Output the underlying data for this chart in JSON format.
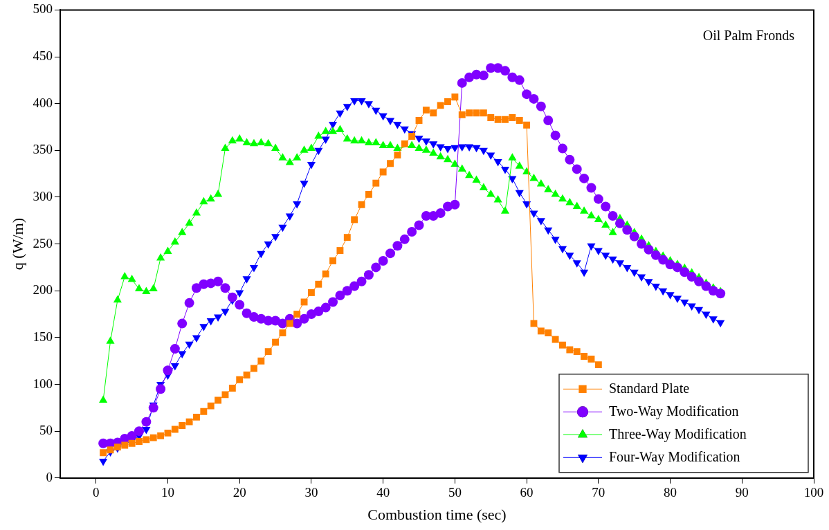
{
  "chart_data": {
    "type": "line",
    "xlabel": "Combustion time (sec)",
    "ylabel": "q (W/m)",
    "annotations": [
      "Oil Palm Fronds"
    ],
    "xlim": [
      -5,
      100
    ],
    "xticks": [
      0,
      10,
      20,
      30,
      40,
      50,
      60,
      70,
      80,
      90,
      100
    ],
    "ylim": [
      0,
      500
    ],
    "yticks": [
      0,
      50,
      100,
      150,
      200,
      250,
      300,
      350,
      400,
      450,
      500
    ],
    "grid": false,
    "legend": "bottom right",
    "line_style": "solid",
    "series": [
      {
        "name": "Standard Plate",
        "color": "#ff8000",
        "marker": "square",
        "x": [
          1,
          2,
          3,
          4,
          5,
          6,
          7,
          8,
          9,
          10,
          11,
          12,
          13,
          14,
          15,
          16,
          17,
          18,
          19,
          20,
          21,
          22,
          23,
          24,
          25,
          26,
          27,
          28,
          29,
          30,
          31,
          32,
          33,
          34,
          35,
          36,
          37,
          38,
          39,
          40,
          41,
          42,
          43,
          44,
          45,
          46,
          47,
          48,
          49,
          50,
          51,
          52,
          53,
          54,
          55,
          56,
          57,
          58,
          59,
          60,
          61,
          62,
          63,
          64,
          65,
          66,
          67,
          68,
          69,
          70
        ],
        "values": [
          27,
          30,
          33,
          35,
          37,
          39,
          41,
          43,
          45,
          48,
          52,
          56,
          60,
          65,
          71,
          77,
          83,
          89,
          96,
          105,
          110,
          117,
          125,
          135,
          145,
          155,
          165,
          175,
          188,
          198,
          207,
          218,
          232,
          243,
          257,
          276,
          292,
          303,
          315,
          327,
          336,
          345,
          357,
          365,
          382,
          393,
          390,
          398,
          402,
          407,
          388,
          390,
          390,
          390,
          385,
          383,
          383,
          385,
          382,
          377,
          165,
          157,
          155,
          148,
          142,
          137,
          135,
          130,
          127,
          121
        ]
      },
      {
        "name": "Two-Way Modification",
        "color": "#8000ff",
        "marker": "circle",
        "x": [
          1,
          2,
          3,
          4,
          5,
          6,
          7,
          8,
          9,
          10,
          11,
          12,
          13,
          14,
          15,
          16,
          17,
          18,
          19,
          20,
          21,
          22,
          23,
          24,
          25,
          26,
          27,
          28,
          29,
          30,
          31,
          32,
          33,
          34,
          35,
          36,
          37,
          38,
          39,
          40,
          41,
          42,
          43,
          44,
          45,
          46,
          47,
          48,
          49,
          50,
          51,
          52,
          53,
          54,
          55,
          56,
          57,
          58,
          59,
          60,
          61,
          62,
          63,
          64,
          65,
          66,
          67,
          68,
          69,
          70,
          71,
          72,
          73,
          74,
          75,
          76,
          77,
          78,
          79,
          80,
          81,
          82,
          83,
          84,
          85,
          86,
          87
        ],
        "values": [
          37,
          37,
          38,
          42,
          45,
          50,
          60,
          75,
          95,
          115,
          138,
          165,
          187,
          203,
          207,
          208,
          210,
          203,
          193,
          185,
          176,
          172,
          170,
          168,
          168,
          165,
          170,
          165,
          170,
          175,
          178,
          182,
          188,
          195,
          200,
          205,
          210,
          217,
          225,
          232,
          240,
          248,
          255,
          263,
          270,
          280,
          280,
          283,
          290,
          292,
          422,
          428,
          431,
          430,
          438,
          438,
          435,
          428,
          425,
          410,
          405,
          397,
          382,
          366,
          352,
          340,
          330,
          320,
          310,
          298,
          290,
          280,
          272,
          265,
          258,
          250,
          244,
          238,
          233,
          228,
          225,
          220,
          215,
          210,
          205,
          200,
          197
        ]
      },
      {
        "name": "Three-Way Modification",
        "color": "#00ff00",
        "marker": "triangle",
        "x": [
          1,
          2,
          3,
          4,
          5,
          6,
          7,
          8,
          9,
          10,
          11,
          12,
          13,
          14,
          15,
          16,
          17,
          18,
          19,
          20,
          21,
          22,
          23,
          24,
          25,
          26,
          27,
          28,
          29,
          30,
          31,
          32,
          33,
          34,
          35,
          36,
          37,
          38,
          39,
          40,
          41,
          42,
          43,
          44,
          45,
          46,
          47,
          48,
          49,
          50,
          51,
          52,
          53,
          54,
          55,
          56,
          57,
          58,
          59,
          60,
          61,
          62,
          63,
          64,
          65,
          66,
          67,
          68,
          69,
          70,
          71,
          72,
          73,
          74,
          75,
          76,
          77,
          78,
          79,
          80,
          81,
          82,
          83,
          84,
          85,
          86,
          87
        ],
        "values": [
          83,
          146,
          190,
          215,
          212,
          202,
          199,
          202,
          235,
          242,
          252,
          262,
          272,
          283,
          295,
          298,
          303,
          352,
          360,
          362,
          358,
          357,
          358,
          357,
          352,
          342,
          337,
          342,
          350,
          352,
          365,
          370,
          370,
          372,
          362,
          360,
          360,
          358,
          358,
          355,
          355,
          352,
          null,
          355,
          352,
          350,
          347,
          343,
          340,
          335,
          330,
          323,
          318,
          310,
          303,
          297,
          285,
          342,
          333,
          327,
          320,
          314,
          308,
          303,
          298,
          294,
          290,
          285,
          280,
          276,
          270,
          262,
          277,
          270,
          262,
          255,
          248,
          242,
          237,
          232,
          228,
          224,
          219,
          214,
          208,
          203,
          199
        ]
      },
      {
        "name": "Four-Way Modification",
        "color": "#0000ff",
        "marker": "triangle_down",
        "x": [
          1,
          2,
          3,
          4,
          5,
          6,
          7,
          8,
          9,
          10,
          11,
          12,
          13,
          14,
          15,
          16,
          17,
          18,
          19,
          20,
          21,
          22,
          23,
          24,
          25,
          26,
          27,
          28,
          29,
          30,
          31,
          32,
          33,
          34,
          35,
          36,
          37,
          38,
          39,
          40,
          41,
          42,
          43,
          44,
          45,
          46,
          47,
          48,
          49,
          50,
          51,
          52,
          53,
          54,
          55,
          56,
          57,
          58,
          59,
          60,
          61,
          62,
          63,
          64,
          65,
          66,
          67,
          68,
          69,
          70,
          71,
          72,
          73,
          74,
          75,
          76,
          77,
          78,
          79,
          80,
          81,
          82,
          83,
          84,
          85,
          86,
          87
        ],
        "values": [
          18,
          28,
          32,
          null,
          40,
          45,
          52,
          78,
          100,
          110,
          120,
          133,
          143,
          150,
          162,
          168,
          172,
          178,
          190,
          198,
          213,
          225,
          240,
          250,
          258,
          268,
          280,
          293,
          315,
          335,
          350,
          362,
          378,
          390,
          397,
          403,
          403,
          400,
          393,
          387,
          382,
          378,
          373,
          368,
          363,
          360,
          357,
          354,
          352,
          353,
          354,
          354,
          353,
          350,
          345,
          338,
          330,
          320,
          305,
          293,
          283,
          275,
          265,
          255,
          245,
          238,
          230,
          220,
          248,
          243,
          238,
          234,
          230,
          225,
          220,
          215,
          210,
          205,
          200,
          196,
          192,
          188,
          184,
          180,
          175,
          170,
          166
        ]
      }
    ]
  }
}
